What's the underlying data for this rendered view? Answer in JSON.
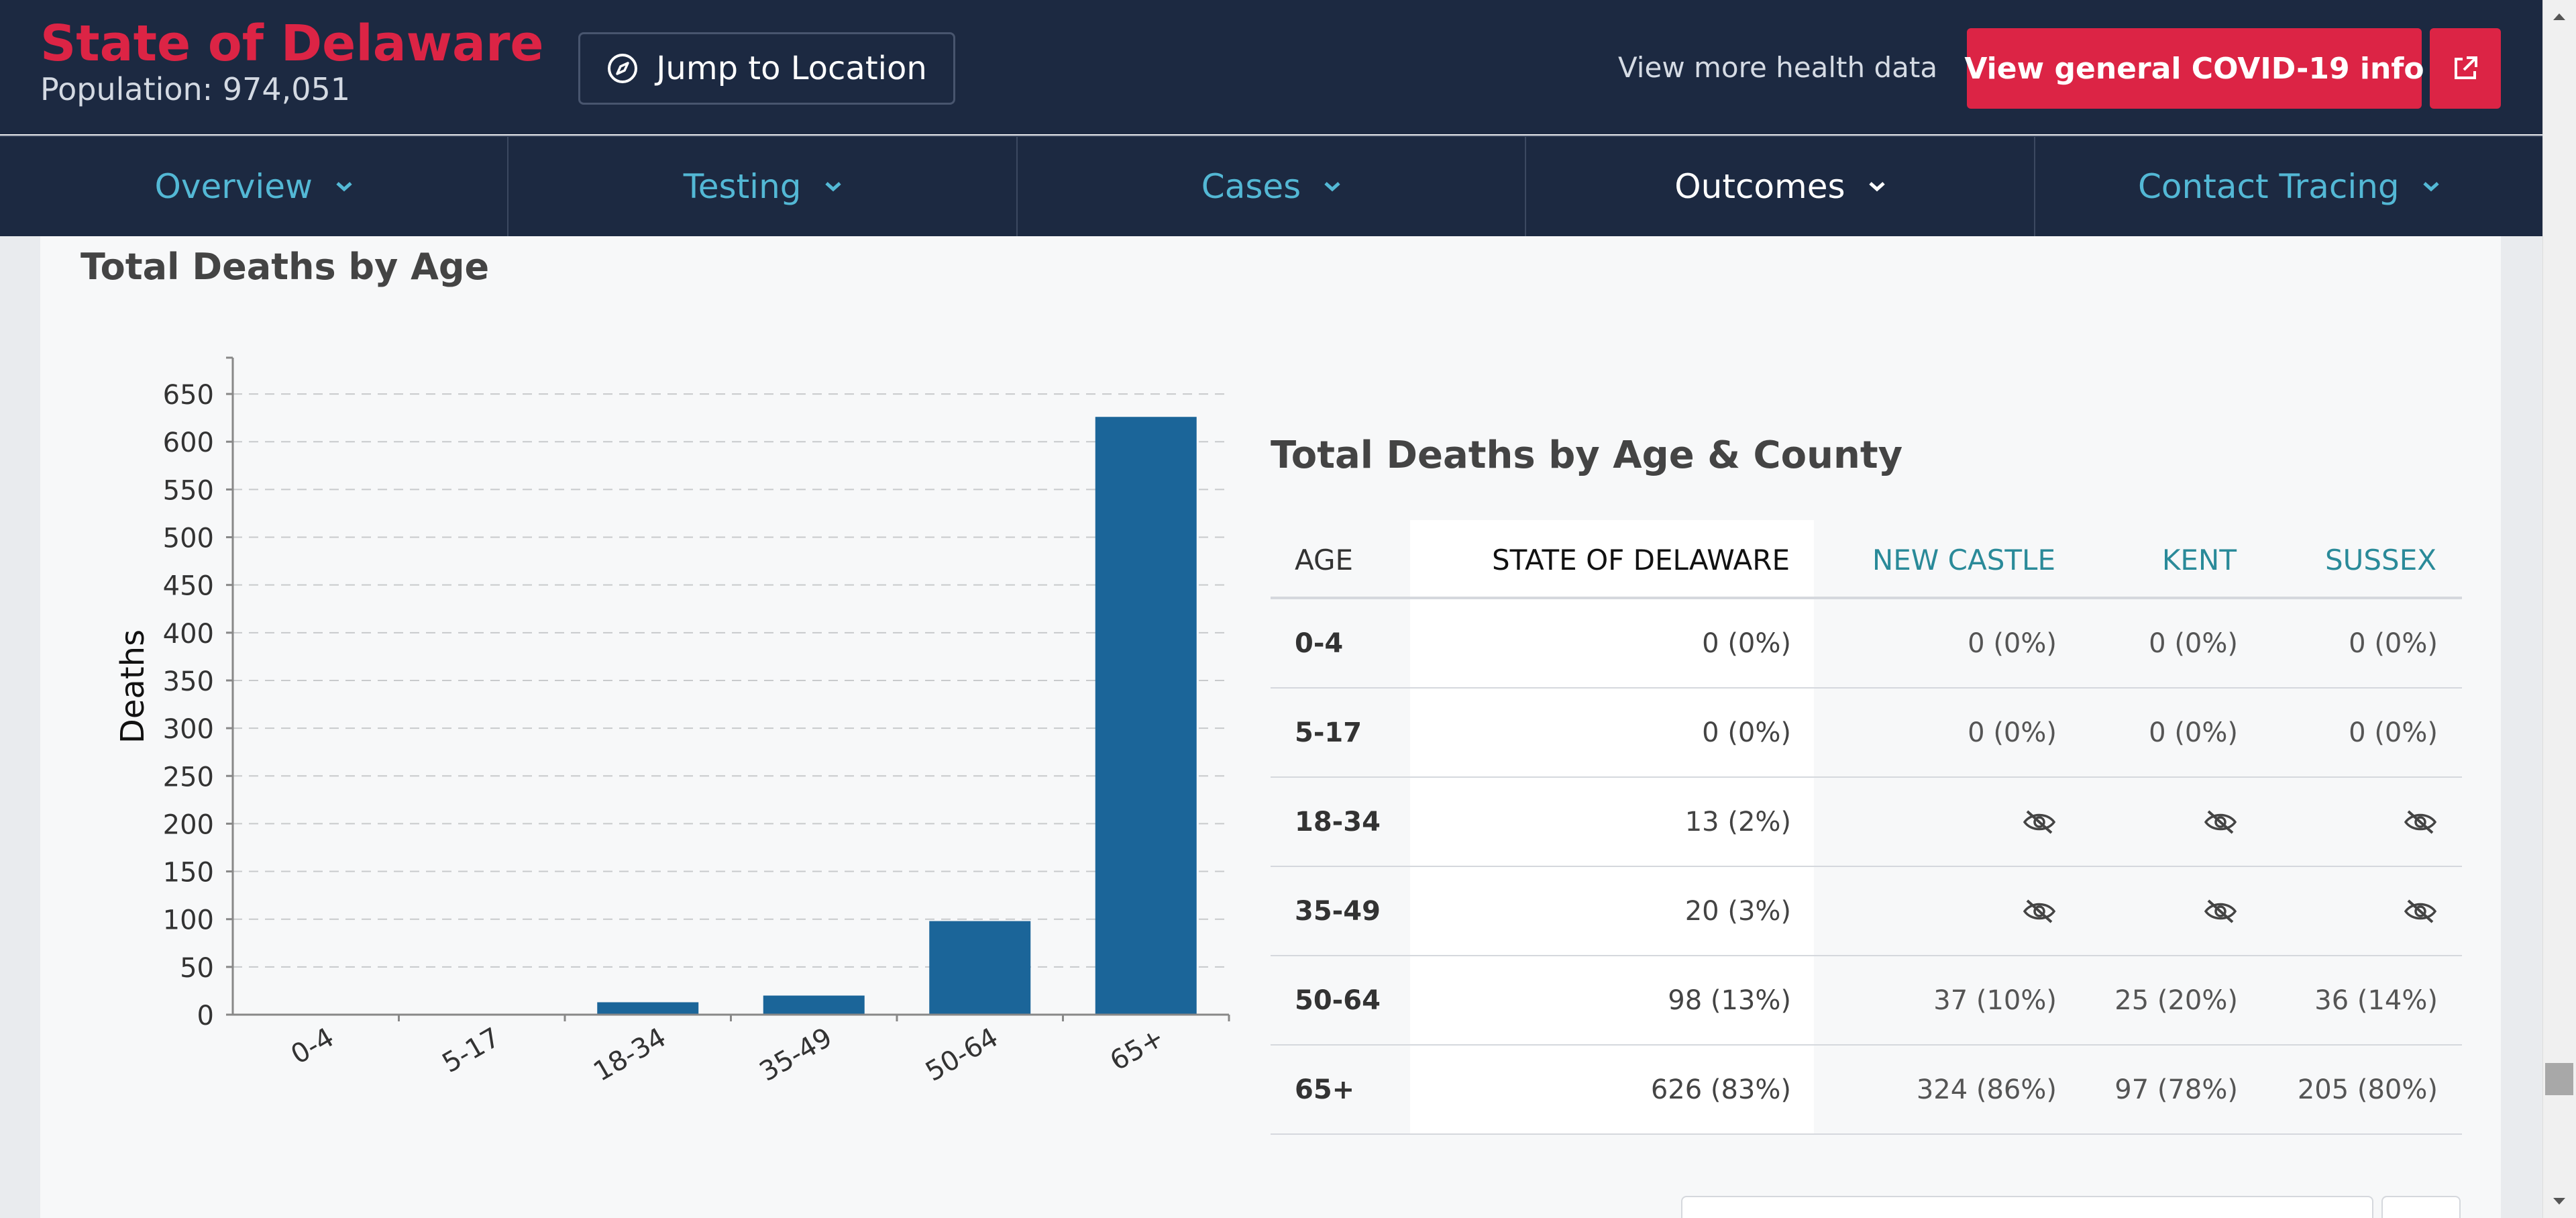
{
  "header": {
    "state_title": "State of Delaware",
    "population": "Population: 974,051",
    "jump_button": "Jump to Location",
    "more_health_link": "View more health data",
    "covid_button": "View general COVID-19 info"
  },
  "nav": {
    "items": [
      {
        "label": "Overview"
      },
      {
        "label": "Testing"
      },
      {
        "label": "Cases"
      },
      {
        "label": "Outcomes"
      },
      {
        "label": "Contact Tracing"
      }
    ],
    "active_index": 3
  },
  "colors": {
    "header_bg": "#1c2941",
    "accent_red": "#dc2445",
    "nav_link": "#53b8d5",
    "bar": "#1b6599",
    "county_header": "#2a8a99"
  },
  "chart_section": {
    "title": "Total Deaths by Age"
  },
  "chart_data": {
    "type": "bar",
    "categories": [
      "0-4",
      "5-17",
      "18-34",
      "35-49",
      "50-64",
      "65+"
    ],
    "values": [
      0,
      0,
      13,
      20,
      98,
      626
    ],
    "ylabel": "Deaths",
    "ylim": [
      0,
      688
    ],
    "yticks": [
      0,
      50,
      100,
      150,
      200,
      250,
      300,
      350,
      400,
      450,
      500,
      550,
      600,
      650
    ],
    "grid": "horizontal-dashed"
  },
  "table": {
    "title": "Total Deaths by Age & County",
    "headers": [
      "AGE",
      "STATE OF DELAWARE",
      "NEW CASTLE",
      "KENT",
      "SUSSEX"
    ],
    "rows": [
      {
        "age": "0-4",
        "state": "0 (0%)",
        "new_castle": "0 (0%)",
        "kent": "0 (0%)",
        "sussex": "0 (0%)"
      },
      {
        "age": "5-17",
        "state": "0 (0%)",
        "new_castle": "0 (0%)",
        "kent": "0 (0%)",
        "sussex": "0 (0%)"
      },
      {
        "age": "18-34",
        "state": "13 (2%)",
        "new_castle": null,
        "kent": null,
        "sussex": null
      },
      {
        "age": "35-49",
        "state": "20 (3%)",
        "new_castle": null,
        "kent": null,
        "sussex": null
      },
      {
        "age": "50-64",
        "state": "98 (13%)",
        "new_castle": "37 (10%)",
        "kent": "25 (20%)",
        "sussex": "36 (14%)"
      },
      {
        "age": "65+",
        "state": "626 (83%)",
        "new_castle": "324 (86%)",
        "kent": "97 (78%)",
        "sussex": "205 (80%)"
      }
    ],
    "hidden_icon": "eye-slash-icon"
  }
}
